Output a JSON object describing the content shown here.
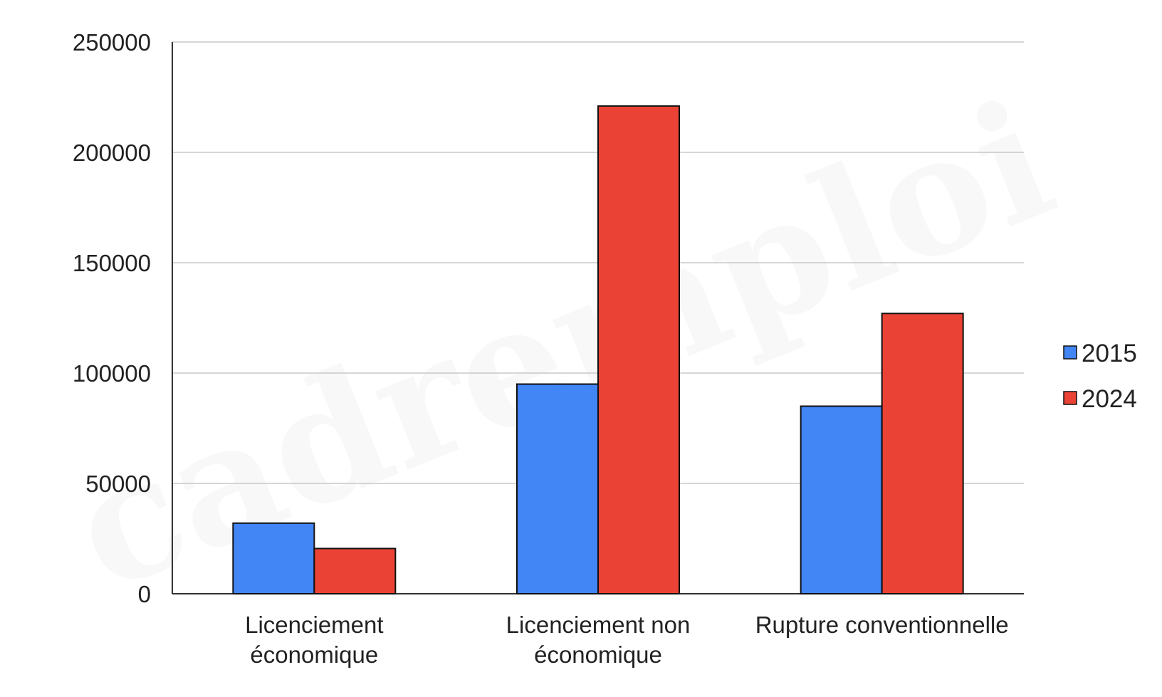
{
  "watermark": "cadremploi",
  "chart_data": {
    "type": "bar",
    "title": "",
    "xlabel": "",
    "ylabel": "",
    "categories": [
      [
        "Licenciement",
        "économique"
      ],
      [
        "Licenciement non",
        "économique"
      ],
      [
        "Rupture conventionnelle"
      ]
    ],
    "series": [
      {
        "name": "2015",
        "color": "#4285f4",
        "values": [
          32000,
          95000,
          85000
        ]
      },
      {
        "name": "2024",
        "color": "#ea4335",
        "values": [
          20500,
          221000,
          127000
        ]
      }
    ],
    "ylim": [
      0,
      250000
    ],
    "yticks": [
      0,
      50000,
      100000,
      150000,
      200000,
      250000
    ],
    "ytick_labels": [
      "0",
      "50000",
      "100000",
      "150000",
      "200000",
      "250000"
    ],
    "grid": true,
    "legend_position": "right"
  }
}
